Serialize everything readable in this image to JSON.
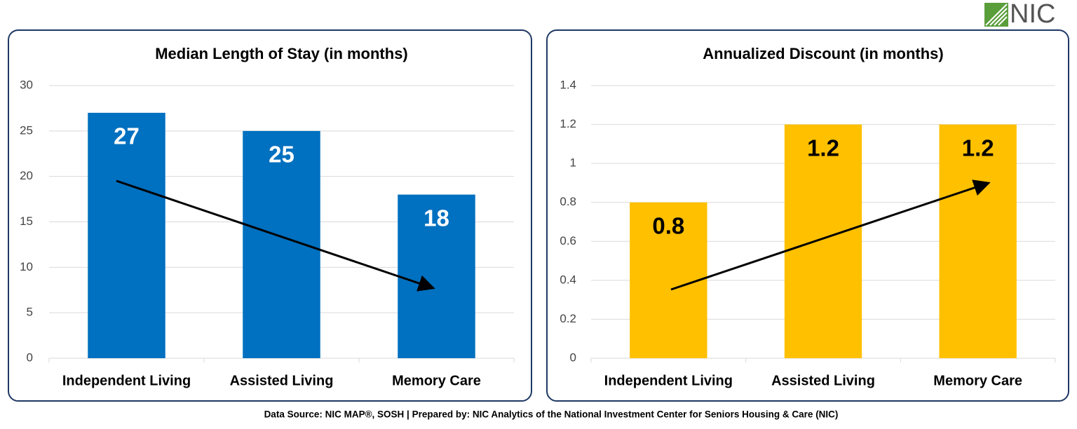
{
  "logo": "NIC",
  "footer": "Data Source: NIC MAP®, SOSH | Prepared by: NIC Analytics of the National Investment Center for Seniors Housing & Care (NIC)",
  "chart_data": [
    {
      "type": "bar",
      "title": "Median Length of Stay (in months)",
      "categories": [
        "Independent Living",
        "Assisted Living",
        "Memory Care"
      ],
      "values": [
        27,
        25,
        18
      ],
      "color": "#0070c0",
      "ylim": [
        0,
        30
      ],
      "yticks": [
        0,
        5,
        10,
        15,
        20,
        25,
        30
      ],
      "grid": true
    },
    {
      "type": "bar",
      "title": "Annualized Discount (in months)",
      "categories": [
        "Independent Living",
        "Assisted Living",
        "Memory Care"
      ],
      "values": [
        0.8,
        1.2,
        1.2
      ],
      "color": "#ffc000",
      "ylim": [
        0,
        1.4
      ],
      "yticks": [
        0,
        0.2,
        0.4,
        0.6,
        0.8,
        1,
        1.2,
        1.4
      ],
      "grid": true
    }
  ]
}
